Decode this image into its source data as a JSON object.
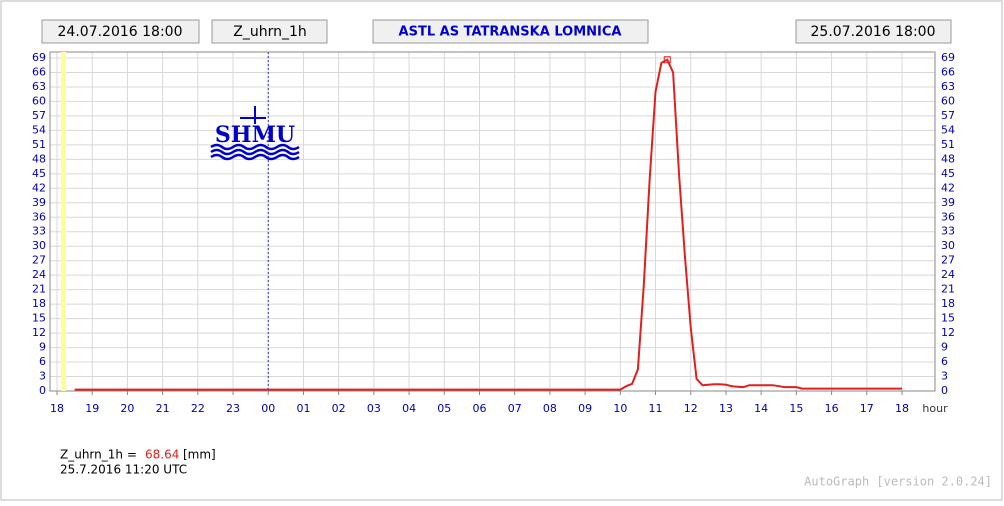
{
  "chart_data": {
    "type": "line",
    "title": "ASTL AS TATRANSKA LOMNICA",
    "start_label": "24.07.2016 18:00",
    "end_label": "25.07.2016 18:00",
    "logo": "SHMU",
    "x_label": "hour",
    "xlim": [
      0,
      24
    ],
    "xticks": [
      {
        "value": 0,
        "label": "18"
      },
      {
        "value": 1,
        "label": "19"
      },
      {
        "value": 2,
        "label": "20"
      },
      {
        "value": 3,
        "label": "21"
      },
      {
        "value": 4,
        "label": "22"
      },
      {
        "value": 5,
        "label": "23"
      },
      {
        "value": 6,
        "label": "00"
      },
      {
        "value": 7,
        "label": "01"
      },
      {
        "value": 8,
        "label": "02"
      },
      {
        "value": 9,
        "label": "03"
      },
      {
        "value": 10,
        "label": "04"
      },
      {
        "value": 11,
        "label": "05"
      },
      {
        "value": 12,
        "label": "06"
      },
      {
        "value": 13,
        "label": "07"
      },
      {
        "value": 14,
        "label": "08"
      },
      {
        "value": 15,
        "label": "09"
      },
      {
        "value": 16,
        "label": "10"
      },
      {
        "value": 17,
        "label": "11"
      },
      {
        "value": 18,
        "label": "12"
      },
      {
        "value": 19,
        "label": "13"
      },
      {
        "value": 20,
        "label": "14"
      },
      {
        "value": 21,
        "label": "15"
      },
      {
        "value": 22,
        "label": "16"
      },
      {
        "value": 23,
        "label": "17"
      },
      {
        "value": 24,
        "label": "18"
      }
    ],
    "ylim": [
      0,
      69
    ],
    "yticks": [
      0,
      3,
      6,
      9,
      12,
      15,
      18,
      21,
      24,
      27,
      30,
      33,
      36,
      39,
      42,
      45,
      48,
      51,
      54,
      57,
      60,
      63,
      66,
      69
    ],
    "grid": true,
    "x": [
      0.5,
      16,
      16.1667,
      16.3333,
      16.5,
      16.6667,
      16.8333,
      17,
      17.1667,
      17.3333,
      17.5,
      17.6667,
      17.8333,
      18,
      18.1667,
      18.3333,
      18.5,
      18.6667,
      18.8333,
      19,
      19.1667,
      19.3333,
      19.5,
      19.6667,
      20,
      20.3333,
      20.5,
      20.6667,
      21,
      21.1667,
      24
    ],
    "series": [
      {
        "name": "Z_uhrn_1h",
        "color": "#e02020",
        "values": [
          0.3,
          0.3,
          1,
          1.5,
          4.5,
          22,
          44,
          62,
          68,
          68.64,
          66,
          45,
          28,
          13,
          2.5,
          1.2,
          1.3,
          1.4,
          1.4,
          1.3,
          1.0,
          0.9,
          0.8,
          1.2,
          1.2,
          1.2,
          1.0,
          0.8,
          0.8,
          0.5,
          0.5
        ]
      }
    ],
    "readout_label": "Z_uhrn_1h =",
    "unit": "[mm]",
    "readout_time": "25.7.2016 11:20 UTC",
    "footer": "AutoGraph [version 2.0.24]"
  }
}
